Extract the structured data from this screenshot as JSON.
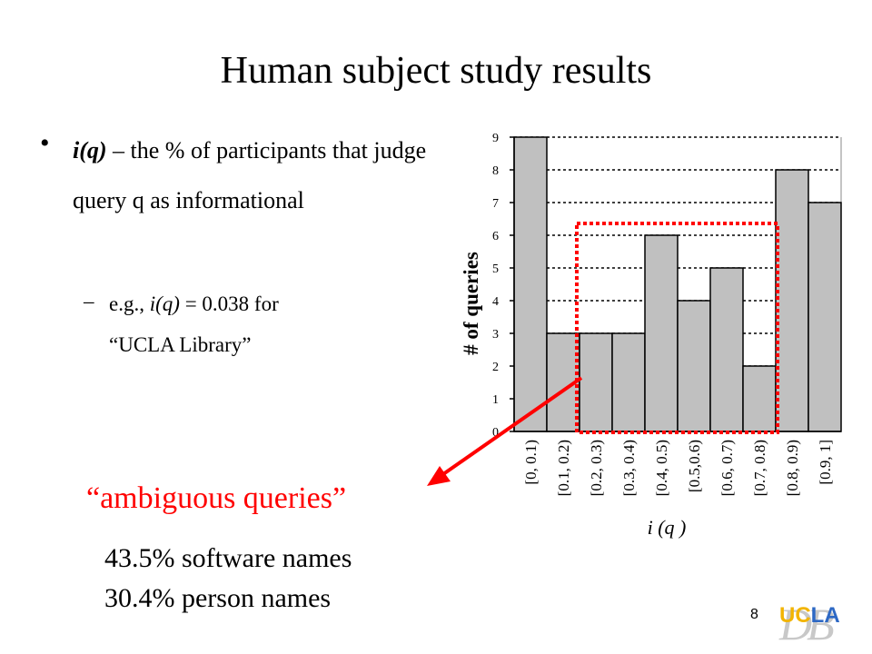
{
  "slide": {
    "title": "Human subject study results",
    "bullet": {
      "term": "i(q)",
      "rest": " – the % of participants that judge query q as informational"
    },
    "subbullet": {
      "prefix": "e.g., ",
      "term": "i(q)",
      "middle": " = 0.038 for",
      "line2": "“UCLA Library”"
    },
    "ambiguous_label": "“ambiguous queries”",
    "stats": [
      "43.5% software names",
      "30.4% person names"
    ],
    "page_number": "8",
    "logo_text": "UCLA",
    "logo_watermark": "DB"
  },
  "chart_data": {
    "type": "bar",
    "categories": [
      "[0, 0.1)",
      "[0.1, 0.2)",
      "[0.2, 0.3)",
      "[0.3, 0.4)",
      "[0.4, 0.5)",
      "[0.5,0.6)",
      "[0.6, 0.7)",
      "[0.7, 0.8)",
      "[0.8, 0.9)",
      "[0.9, 1]"
    ],
    "values": [
      9,
      3,
      3,
      3,
      6,
      4,
      5,
      2,
      8,
      7
    ],
    "ylabel": "# of queries",
    "xlabel": "i (q )",
    "ylim": [
      0,
      9
    ],
    "yticks": [
      0,
      1,
      2,
      3,
      4,
      5,
      6,
      7,
      8,
      9
    ],
    "grid": "dotted horizontal",
    "highlight_categories": [
      2,
      7
    ],
    "colors": {
      "bar": "#c0c0c0",
      "highlight": "#ff0000",
      "arrow": "#ff0000"
    }
  }
}
